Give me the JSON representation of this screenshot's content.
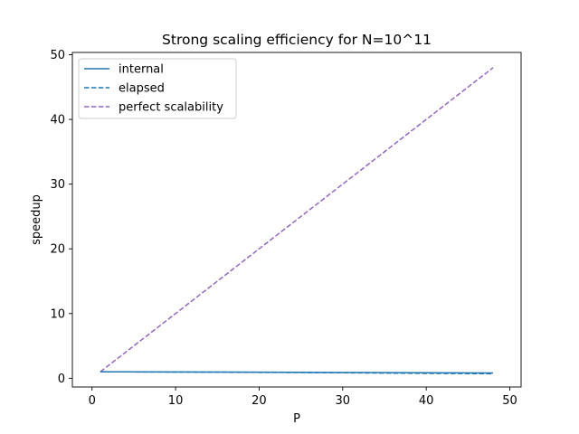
{
  "chart_data": {
    "type": "line",
    "title": "Strong scaling efficiency for N=10^11",
    "xlabel": "P",
    "ylabel": "speedup",
    "xlim": [
      -2.35,
      51.35
    ],
    "ylim": [
      -1.35,
      50.35
    ],
    "xticks": [
      0,
      10,
      20,
      30,
      40,
      50
    ],
    "yticks": [
      0,
      10,
      20,
      30,
      40,
      50
    ],
    "grid": false,
    "legend_position": "upper-left",
    "series": [
      {
        "name": "internal",
        "style": "solid",
        "color": "#1f77b4",
        "x": [
          1,
          8,
          16,
          24,
          32,
          40,
          48
        ],
        "y": [
          1.0,
          0.98,
          0.95,
          0.92,
          0.88,
          0.85,
          0.82
        ]
      },
      {
        "name": "elapsed",
        "style": "dashed",
        "color": "#1f77b4",
        "x": [
          1,
          8,
          16,
          24,
          32,
          40,
          48
        ],
        "y": [
          1.0,
          0.97,
          0.93,
          0.89,
          0.83,
          0.75,
          0.7
        ]
      },
      {
        "name": "perfect scalability",
        "style": "dashed",
        "color": "#9467bd",
        "x": [
          1,
          48
        ],
        "y": [
          1,
          48
        ]
      }
    ]
  }
}
